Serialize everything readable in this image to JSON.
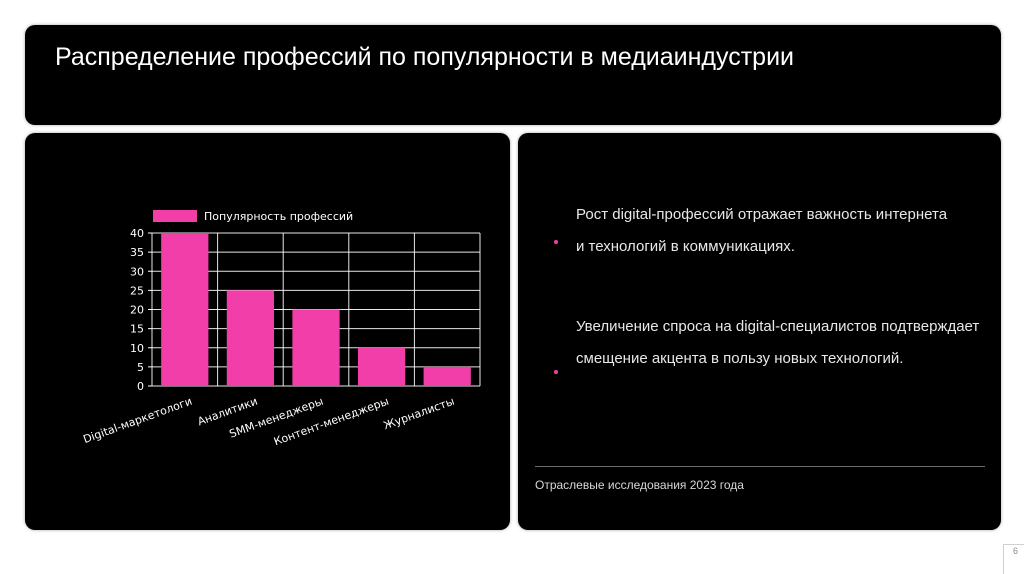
{
  "title": "Распределение профессий по популярности в медиаиндустрии",
  "colors": {
    "accent": "#f13ea9",
    "panel": "#000000",
    "grid": "#ffffff"
  },
  "chart_data": {
    "type": "bar",
    "categories": [
      "Digital-маркетологи",
      "Аналитики",
      "SMM-менеджеры",
      "Контент-менеджеры",
      "Журналисты"
    ],
    "series": [
      {
        "name": "Популярность профессий",
        "values": [
          40,
          25,
          20,
          10,
          5
        ]
      }
    ],
    "yticks": [
      0,
      5,
      10,
      15,
      20,
      25,
      30,
      35,
      40
    ],
    "ylim": [
      0,
      40
    ],
    "grid": true,
    "legend": "top-left"
  },
  "bullets": [
    {
      "text": "Рост digital-профессий отражает важность интернета и технологий в коммуникациях."
    },
    {
      "text": "Увеличение спроса на digital-специалистов подтверждает смещение акцента в пользу новых технологий."
    }
  ],
  "source": "Отраслевые исследования 2023 года",
  "page_number": "6"
}
